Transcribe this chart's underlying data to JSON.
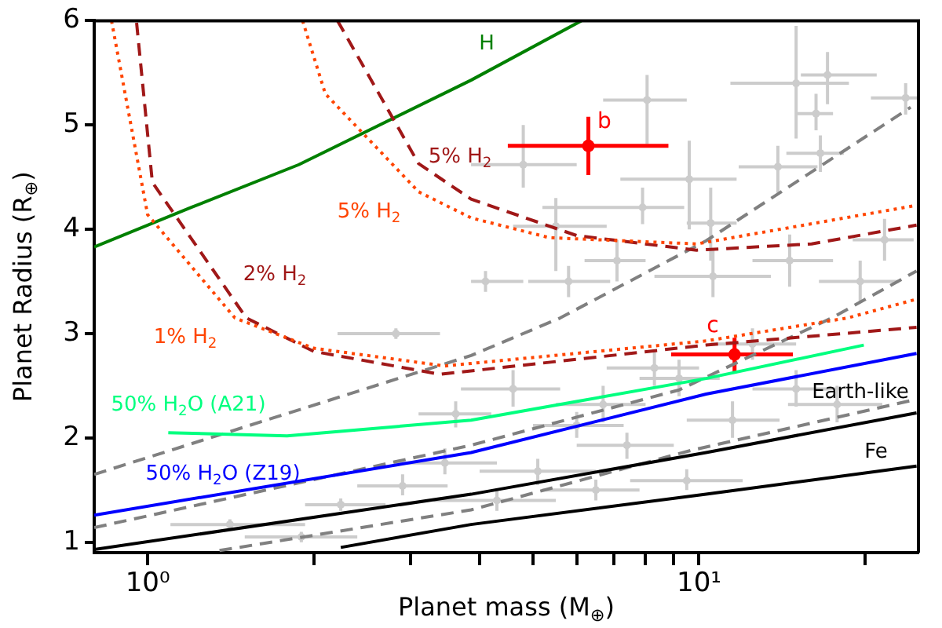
{
  "chart_data": {
    "type": "scatter",
    "xlabel": "Planet mass (M$_{⊕}$)",
    "ylabel": "Planet Radius (R$_{⊕}$)",
    "log": "x",
    "grid": false,
    "legend": false,
    "xlim": [
      0.8,
      25
    ],
    "ylim": [
      0.9,
      6
    ],
    "xticks": [
      {
        "value": 1,
        "label": "10⁰"
      },
      {
        "value": 2,
        "label": null
      },
      {
        "value": 3,
        "label": null
      },
      {
        "value": 4,
        "label": null
      },
      {
        "value": 5,
        "label": null
      },
      {
        "value": 6,
        "label": null
      },
      {
        "value": 7,
        "label": null
      },
      {
        "value": 8,
        "label": null
      },
      {
        "value": 9,
        "label": null
      },
      {
        "value": 10,
        "label": "10¹"
      },
      {
        "value": 20,
        "label": null
      }
    ],
    "yticks": [
      1,
      2,
      3,
      4,
      5,
      6
    ],
    "series": [
      {
        "color": "#cccccc",
        "marker": "circle",
        "x": [
          8.05,
          15,
          17.1,
          16.3,
          23.7,
          16.6,
          13.9,
          4.8,
          9.6,
          7.9,
          5.5,
          10.5,
          7.1,
          5.8,
          4.1,
          14.6,
          19.6,
          21.7,
          10.6,
          2.82,
          2.24,
          3.62,
          2.9,
          1.41,
          3.46,
          4.6,
          6.7,
          9.2,
          5.1,
          7.4,
          11.5,
          15,
          6.0,
          9.5,
          4.3,
          8.3,
          17.8,
          1.9,
          12.5,
          6.5
        ],
        "values": [
          5.24,
          5.4,
          5.48,
          5.11,
          5.26,
          4.73,
          4.6,
          4.62,
          4.48,
          4.21,
          4.03,
          4.06,
          3.7,
          3.5,
          3.5,
          3.7,
          3.5,
          3.9,
          3.55,
          3.0,
          1.36,
          2.23,
          1.54,
          1.17,
          1.76,
          2.47,
          2.32,
          2.57,
          1.68,
          1.93,
          2.17,
          2.47,
          2.12,
          1.59,
          1.4,
          2.67,
          2.32,
          1.05,
          2.9,
          1.5
        ],
        "xerrors": [
          [
            6.7,
            9.5
          ],
          [
            11.4,
            18.7
          ],
          [
            15.3,
            21
          ],
          [
            15,
            17.5
          ],
          [
            20.5,
            25
          ],
          [
            14.4,
            18.3
          ],
          [
            11.8,
            16.4
          ],
          [
            3.86,
            6.0
          ],
          [
            7.2,
            11.7
          ],
          [
            5.2,
            9.4
          ],
          [
            4.6,
            6.8
          ],
          [
            9.5,
            11.7
          ],
          [
            6.2,
            8.0
          ],
          [
            4.9,
            6.9
          ],
          [
            3.86,
            4.8
          ],
          [
            12.5,
            17.5
          ],
          [
            16.5,
            23
          ],
          [
            19,
            24.5
          ],
          [
            8.3,
            13.5
          ],
          [
            2.21,
            3.39
          ],
          [
            1.93,
            2.7
          ],
          [
            3.1,
            4.2
          ],
          [
            2.4,
            3.5
          ],
          [
            1.1,
            1.93
          ],
          [
            2.8,
            4.3
          ],
          [
            3.7,
            5.6
          ],
          [
            5.5,
            8.0
          ],
          [
            7.8,
            10.9
          ],
          [
            4.0,
            6.5
          ],
          [
            6.0,
            9.0
          ],
          [
            9.5,
            14
          ],
          [
            12.5,
            18
          ],
          [
            5.0,
            7.3
          ],
          [
            7.5,
            12
          ],
          [
            3.3,
            5.5
          ],
          [
            6.8,
            10
          ],
          [
            14.5,
            21.5
          ],
          [
            1.5,
            2.4
          ],
          [
            10.5,
            15
          ],
          [
            5.2,
            7.8
          ]
        ],
        "errors": [
          [
            4.82,
            5.48
          ],
          [
            4.87,
            5.95
          ],
          [
            5.2,
            5.7
          ],
          [
            4.95,
            5.3
          ],
          [
            5.1,
            5.4
          ],
          [
            4.55,
            4.9
          ],
          [
            4.35,
            4.8
          ],
          [
            4.4,
            5.0
          ],
          [
            4.0,
            4.85
          ],
          [
            4.05,
            4.4
          ],
          [
            3.6,
            4.3
          ],
          [
            3.7,
            4.4
          ],
          [
            3.5,
            3.9
          ],
          [
            3.35,
            3.65
          ],
          [
            3.4,
            3.6
          ],
          [
            3.45,
            3.95
          ],
          [
            3.3,
            3.7
          ],
          [
            3.7,
            4.1
          ],
          [
            3.35,
            3.8
          ],
          [
            2.95,
            3.05
          ],
          [
            1.3,
            1.42
          ],
          [
            2.1,
            2.35
          ],
          [
            1.45,
            1.65
          ],
          [
            1.12,
            1.22
          ],
          [
            1.65,
            1.9
          ],
          [
            2.3,
            2.65
          ],
          [
            2.15,
            2.5
          ],
          [
            2.4,
            2.75
          ],
          [
            1.55,
            1.8
          ],
          [
            1.8,
            2.05
          ],
          [
            2.0,
            2.35
          ],
          [
            2.3,
            2.65
          ],
          [
            2.0,
            2.25
          ],
          [
            1.5,
            1.7
          ],
          [
            1.3,
            1.5
          ],
          [
            2.5,
            2.85
          ],
          [
            2.15,
            2.5
          ],
          [
            1.0,
            1.1
          ],
          [
            2.75,
            3.05
          ],
          [
            1.4,
            1.6
          ]
        ]
      },
      {
        "type": "line",
        "marker": "none",
        "color": "#808080",
        "line_style": "dashed",
        "x": [
          0.8,
          3.86,
          5.6,
          10.3,
          24.2
        ],
        "values": [
          1.65,
          2.79,
          3.15,
          3.89,
          5.17
        ]
      },
      {
        "type": "line",
        "marker": "none",
        "color": "#808080",
        "line_style": "dashed",
        "x": [
          0.8,
          3.86,
          9.2,
          17.4,
          24.8
        ],
        "values": [
          1.14,
          1.93,
          2.46,
          3.15,
          3.6
        ]
      },
      {
        "type": "line",
        "marker": "none",
        "color": "#808080",
        "line_style": "dashed",
        "x": [
          1.35,
          3.86,
          9.67,
          24.8
        ],
        "values": [
          0.92,
          1.31,
          1.88,
          2.37
        ]
      },
      {
        "type": "line",
        "marker": "none",
        "name": "Earth-like",
        "color": "#000000",
        "line_style": "solid",
        "x": [
          0.8,
          3.86,
          10.3,
          24.8
        ],
        "values": [
          0.93,
          1.46,
          1.86,
          2.24
        ]
      },
      {
        "type": "line",
        "marker": "none",
        "name": "Fe",
        "color": "#000000",
        "line_style": "solid",
        "x": [
          2.24,
          3.86,
          10.3,
          24.8
        ],
        "values": [
          0.95,
          1.17,
          1.46,
          1.73
        ]
      },
      {
        "type": "line",
        "marker": "none",
        "name": "50% H$_{2}$O (Z19)",
        "color": "#0000ff",
        "line_style": "solid",
        "x": [
          0.8,
          3.86,
          10.3,
          24.8
        ],
        "values": [
          1.26,
          1.86,
          2.42,
          2.81
        ]
      },
      {
        "type": "line",
        "marker": "none",
        "name": "50% H$_{2}$O (A21)",
        "color": "#00ff7f",
        "line_style": "solid",
        "x": [
          1.09,
          1.79,
          3.86,
          10.3,
          19.9
        ],
        "values": [
          2.05,
          2.02,
          2.17,
          2.57,
          2.89
        ]
      },
      {
        "type": "line",
        "marker": "none",
        "name": "H",
        "color": "#008000",
        "line_style": "solid",
        "x": [
          0.8,
          1.2,
          1.88,
          3.86,
          6.12
        ],
        "values": [
          3.83,
          4.21,
          4.62,
          5.43,
          6.0
        ]
      },
      {
        "type": "line",
        "marker": "none",
        "name": "5% H$_{2}$",
        "color": "#a01818",
        "line_style": "dashed",
        "x": [
          2.21,
          3.1,
          3.86,
          6.0,
          9.9,
          16,
          24.8
        ],
        "values": [
          6.0,
          4.63,
          4.29,
          3.94,
          3.8,
          3.86,
          4.04
        ]
      },
      {
        "type": "line",
        "marker": "none",
        "name": "5% H$_{2}$",
        "color": "#ff4500",
        "line_style": "dotted",
        "x": [
          1.91,
          2.1,
          3.1,
          3.86,
          5.35,
          9.9,
          24.8
        ],
        "values": [
          6.0,
          5.3,
          4.36,
          4.11,
          3.92,
          3.86,
          4.23
        ]
      },
      {
        "type": "line",
        "marker": "none",
        "name": "2% H$_{2}$",
        "color": "#a01818",
        "line_style": "dashed",
        "x": [
          0.955,
          1.02,
          1.51,
          2.0,
          3.39,
          10.3,
          24.8
        ],
        "values": [
          5.98,
          4.45,
          3.15,
          2.83,
          2.61,
          2.89,
          3.06
        ]
      },
      {
        "type": "line",
        "marker": "none",
        "name": "1% H$_{2}$",
        "color": "#ff4500",
        "line_style": "dotted",
        "x": [
          0.86,
          1.0,
          1.44,
          2.0,
          3.46,
          10.3,
          18.6,
          24.8
        ],
        "values": [
          6.0,
          4.14,
          3.15,
          2.86,
          2.69,
          2.93,
          3.15,
          3.33
        ]
      },
      {
        "name": "b",
        "marker": "circle",
        "color": "#ff0000",
        "x": [
          6.3
        ],
        "values": [
          4.8
        ],
        "xerrors": [
          [
            4.5,
            8.8
          ]
        ],
        "errors": [
          [
            4.52,
            5.08
          ]
        ]
      },
      {
        "name": "c",
        "marker": "circle",
        "color": "#ff0000",
        "x": [
          11.6
        ],
        "values": [
          2.8
        ],
        "xerrors": [
          [
            8.9,
            14.8
          ]
        ],
        "errors": [
          [
            2.62,
            2.96
          ]
        ]
      }
    ]
  }
}
